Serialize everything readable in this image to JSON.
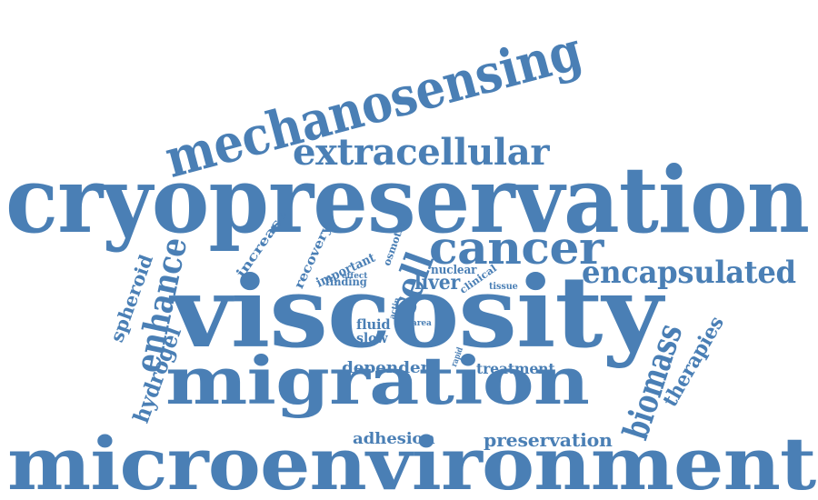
{
  "color": "#4a7fb5",
  "words": [
    {
      "key": "mechanosensing",
      "text": "mechanosensing"
    },
    {
      "key": "extracellular",
      "text": "extracellular"
    },
    {
      "key": "cryopreservation",
      "text": "cryopreservation"
    },
    {
      "key": "cancer",
      "text": "cancer"
    },
    {
      "key": "encapsulated",
      "text": "encapsulated"
    },
    {
      "key": "spheroid",
      "text": "spheroid"
    },
    {
      "key": "enhance",
      "text": "enhance"
    },
    {
      "key": "hydrogel",
      "text": "hydrogel"
    },
    {
      "key": "increase",
      "text": "increase"
    },
    {
      "key": "recovery",
      "text": "recovery"
    },
    {
      "key": "important",
      "text": "important"
    },
    {
      "key": "osmotic",
      "text": "osmotic"
    },
    {
      "key": "effect",
      "text": "effect"
    },
    {
      "key": "finding",
      "text": "finding"
    },
    {
      "key": "cell",
      "text": "cell"
    },
    {
      "key": "nuclear",
      "text": "nuclear"
    },
    {
      "key": "clinical",
      "text": "clinical"
    },
    {
      "key": "liver",
      "text": "liver"
    },
    {
      "key": "tissue",
      "text": "tissue"
    },
    {
      "key": "viscosity",
      "text": "viscosity"
    },
    {
      "key": "actin",
      "text": "actin"
    },
    {
      "key": "fluid",
      "text": "fluid"
    },
    {
      "key": "area",
      "text": "area"
    },
    {
      "key": "slow",
      "text": "slow"
    },
    {
      "key": "rapid",
      "text": "rapid"
    },
    {
      "key": "biomass",
      "text": "biomass"
    },
    {
      "key": "therapies",
      "text": "therapies"
    },
    {
      "key": "dependent",
      "text": "dependent"
    },
    {
      "key": "treatment",
      "text": "treatment"
    },
    {
      "key": "migration",
      "text": "migration"
    },
    {
      "key": "adhesion",
      "text": "adhesion"
    },
    {
      "key": "preservation",
      "text": "preservation"
    },
    {
      "key": "microenvironment",
      "text": "microenvironment"
    }
  ]
}
